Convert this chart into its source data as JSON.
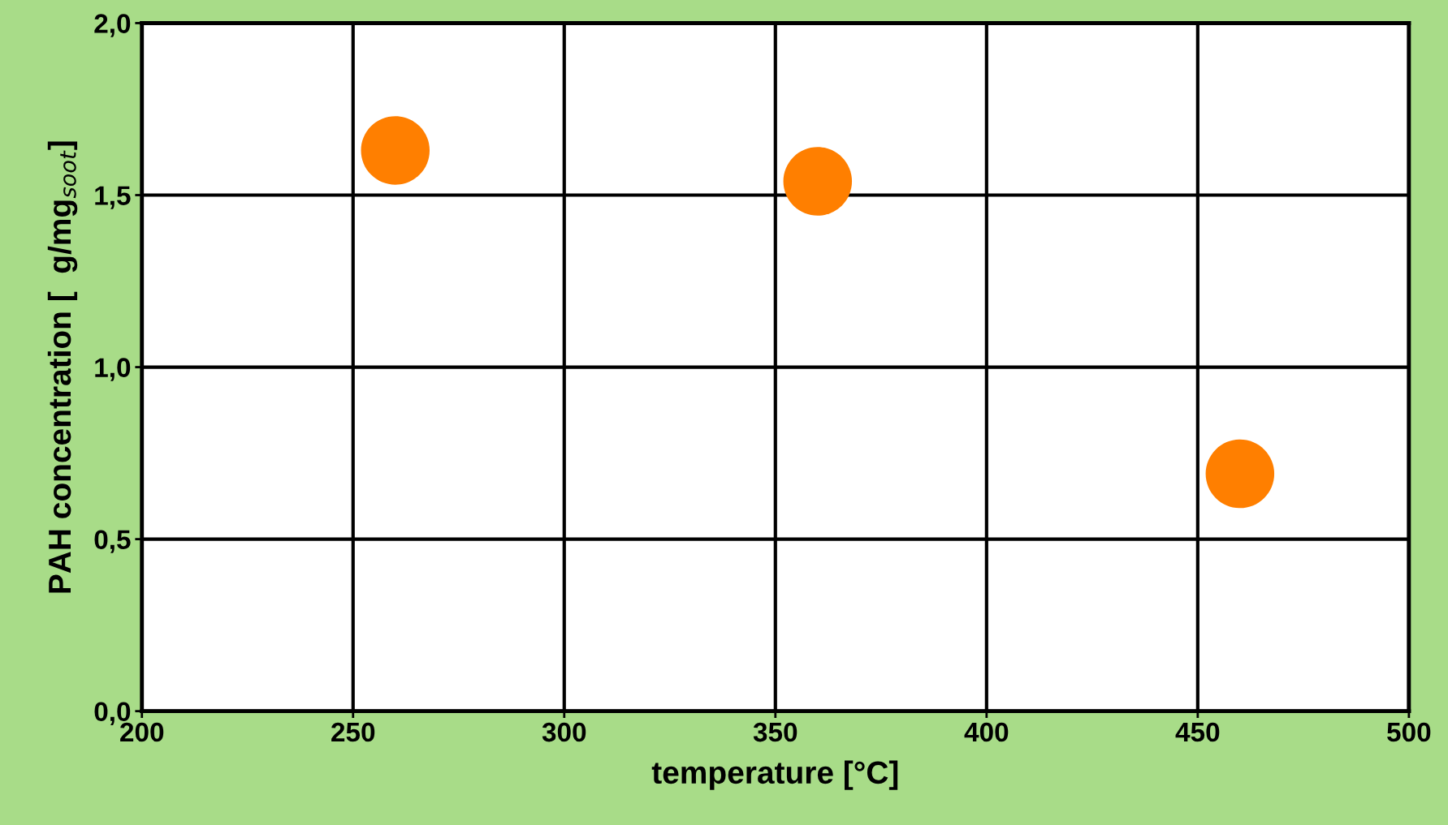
{
  "chart_data": {
    "type": "scatter",
    "xlabel": "temperature [°C]",
    "ylabel": "PAH concentration [  g/mg$_{soot}$]",
    "x": [
      260,
      360,
      460
    ],
    "series": [
      {
        "color": "#ff7f00",
        "values": [
          1.63,
          1.54,
          0.69
        ]
      }
    ],
    "xlim": [
      200,
      500
    ],
    "xticks": [
      200,
      250,
      300,
      350,
      400,
      450,
      500
    ],
    "ylim": [
      0,
      2
    ],
    "yticks": [
      {
        "value": 0,
        "label": "0,0"
      },
      {
        "value": 0.5,
        "label": "0,5"
      },
      {
        "value": 1,
        "label": "1,0"
      },
      {
        "value": 1.5,
        "label": "1,5"
      },
      {
        "value": 2,
        "label": "2,0"
      }
    ],
    "grid": true,
    "marker": "circle"
  }
}
